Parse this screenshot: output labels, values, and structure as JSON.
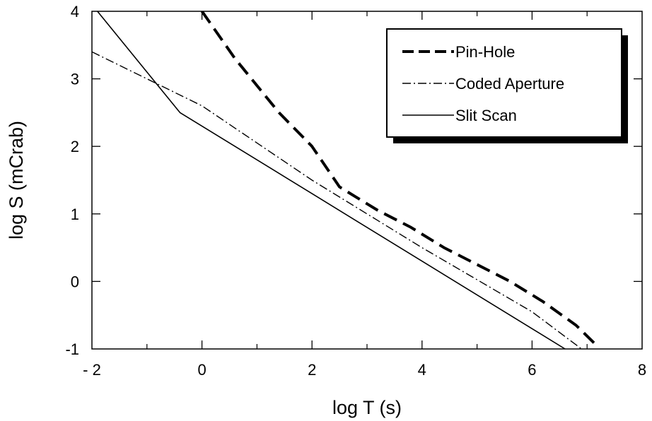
{
  "chart_data": {
    "type": "line",
    "title": "",
    "xlabel": "log T (s)",
    "ylabel": "log S (mCrab)",
    "xlim": [
      -2,
      8
    ],
    "ylim": [
      -1,
      4
    ],
    "x_ticks": [
      -2,
      0,
      2,
      4,
      6,
      8
    ],
    "y_ticks": [
      -1,
      0,
      1,
      2,
      3,
      4
    ],
    "x_tick_labels": [
      "- 2",
      "0",
      "2",
      "4",
      "6",
      "8"
    ],
    "y_tick_labels": [
      "-1",
      "0",
      "1",
      "2",
      "3",
      "4"
    ],
    "grid": false,
    "legend_position": "top-right",
    "series": [
      {
        "name": "Pin-Hole",
        "style": "dashed-thick",
        "color": "#000000",
        "points": [
          [
            0.0,
            4.0
          ],
          [
            0.6,
            3.3
          ],
          [
            1.4,
            2.5
          ],
          [
            2.0,
            2.0
          ],
          [
            2.5,
            1.4
          ],
          [
            2.8,
            1.25
          ],
          [
            3.2,
            1.05
          ],
          [
            3.8,
            0.8
          ],
          [
            4.4,
            0.5
          ],
          [
            5.0,
            0.25
          ],
          [
            5.6,
            0.0
          ],
          [
            6.2,
            -0.3
          ],
          [
            6.8,
            -0.65
          ],
          [
            7.2,
            -0.97
          ]
        ]
      },
      {
        "name": "Coded Aperture",
        "style": "dash-dot",
        "color": "#000000",
        "points": [
          [
            -2.0,
            3.4
          ],
          [
            0.0,
            2.6
          ],
          [
            2.0,
            1.5
          ],
          [
            4.0,
            0.5
          ],
          [
            6.0,
            -0.45
          ],
          [
            6.9,
            -1.0
          ]
        ]
      },
      {
        "name": "Slit Scan",
        "style": "solid",
        "color": "#000000",
        "points": [
          [
            -1.9,
            4.0
          ],
          [
            -0.4,
            2.5
          ],
          [
            2.0,
            1.3
          ],
          [
            4.0,
            0.3
          ],
          [
            6.0,
            -0.7
          ],
          [
            6.6,
            -1.0
          ]
        ]
      }
    ]
  }
}
